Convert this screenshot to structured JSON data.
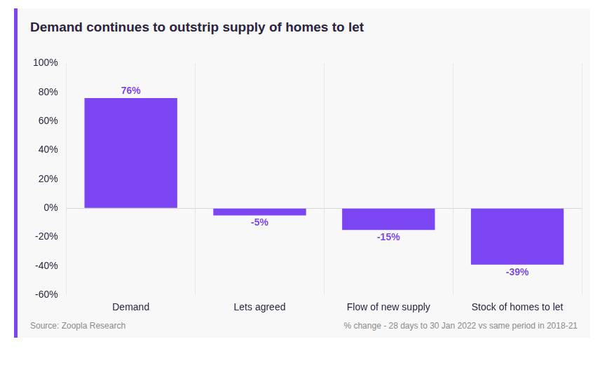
{
  "chart_data": {
    "type": "bar",
    "title": "Demand continues to outstrip supply of homes to let",
    "categories": [
      "Demand",
      "Lets agreed",
      "Flow of new supply",
      "Stock of homes to let"
    ],
    "values": [
      76,
      -5,
      -15,
      -39
    ],
    "value_labels": [
      "76%",
      "-5%",
      "-15%",
      "-39%"
    ],
    "color": "#7c45f2",
    "ylim": [
      -60,
      100
    ],
    "yticks": [
      {
        "value": -60,
        "label": "-60%"
      },
      {
        "value": -40,
        "label": "-40%"
      },
      {
        "value": -20,
        "label": "-20%"
      },
      {
        "value": 0,
        "label": "0%"
      },
      {
        "value": 20,
        "label": "20%"
      },
      {
        "value": 40,
        "label": "40%"
      },
      {
        "value": 60,
        "label": "60%"
      },
      {
        "value": 80,
        "label": "80%"
      },
      {
        "value": 100,
        "label": "100%"
      }
    ],
    "grid": true,
    "data_labels": true,
    "source": "Source: Zoopla Research",
    "note": "% change - 28 days to 30 Jan 2022 vs same period in 2018-21"
  }
}
